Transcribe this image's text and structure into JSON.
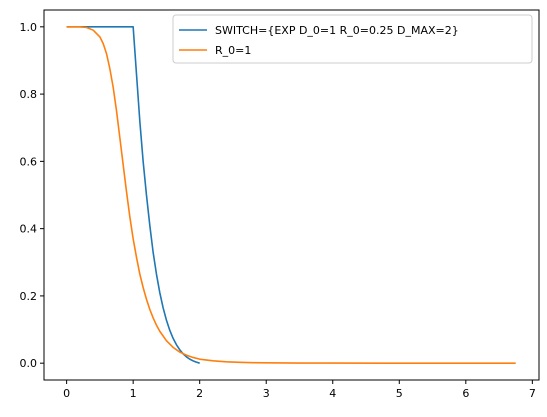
{
  "chart_data": {
    "type": "line",
    "title": "",
    "xlabel": "",
    "ylabel": "",
    "xlim": [
      -0.34,
      7.1
    ],
    "ylim": [
      -0.05,
      1.05
    ],
    "xticks": [
      0,
      1,
      2,
      3,
      4,
      5,
      6,
      7
    ],
    "yticks": [
      0.0,
      0.2,
      0.4,
      0.6,
      0.8,
      1.0
    ],
    "xtick_labels": [
      "0",
      "1",
      "2",
      "3",
      "4",
      "5",
      "6",
      "7"
    ],
    "ytick_labels": [
      "0.0",
      "0.2",
      "0.4",
      "0.6",
      "0.8",
      "1.0"
    ],
    "grid": false,
    "legend_position": "top-right",
    "series": [
      {
        "name": "SWITCH={EXP D_0=1 R_0=0.25 D_MAX=2}",
        "color": "#1f77b4",
        "x": [
          0,
          0.25,
          0.5,
          0.75,
          1.0,
          1.05,
          1.1,
          1.15,
          1.2,
          1.25,
          1.3,
          1.35,
          1.4,
          1.45,
          1.5,
          1.55,
          1.6,
          1.65,
          1.7,
          1.75,
          1.8,
          1.85,
          1.9,
          1.95,
          2.0
        ],
        "y": [
          1.0,
          1.0,
          1.0,
          1.0,
          1.0,
          0.86,
          0.72,
          0.6,
          0.5,
          0.41,
          0.33,
          0.265,
          0.21,
          0.165,
          0.128,
          0.098,
          0.074,
          0.055,
          0.04,
          0.028,
          0.019,
          0.012,
          0.007,
          0.003,
          0.0
        ]
      },
      {
        "name": "R_0=1",
        "color": "#ff7f0e",
        "x": [
          0,
          0.1,
          0.2,
          0.3,
          0.4,
          0.5,
          0.55,
          0.6,
          0.65,
          0.7,
          0.75,
          0.8,
          0.85,
          0.9,
          0.95,
          1.0,
          1.05,
          1.1,
          1.15,
          1.2,
          1.25,
          1.3,
          1.35,
          1.4,
          1.5,
          1.6,
          1.7,
          1.8,
          1.9,
          2.0,
          2.2,
          2.4,
          2.6,
          2.8,
          3.0,
          3.5,
          4.0,
          5.0,
          6.0,
          6.75
        ],
        "y": [
          1.0,
          1.0,
          1.0,
          0.998,
          0.99,
          0.97,
          0.95,
          0.92,
          0.875,
          0.82,
          0.75,
          0.67,
          0.59,
          0.51,
          0.435,
          0.37,
          0.315,
          0.265,
          0.225,
          0.19,
          0.16,
          0.135,
          0.113,
          0.095,
          0.067,
          0.047,
          0.033,
          0.024,
          0.017,
          0.012,
          0.007,
          0.004,
          0.0025,
          0.0015,
          0.001,
          0.0004,
          0.0002,
          0.0,
          0.0,
          0.0
        ]
      }
    ]
  }
}
